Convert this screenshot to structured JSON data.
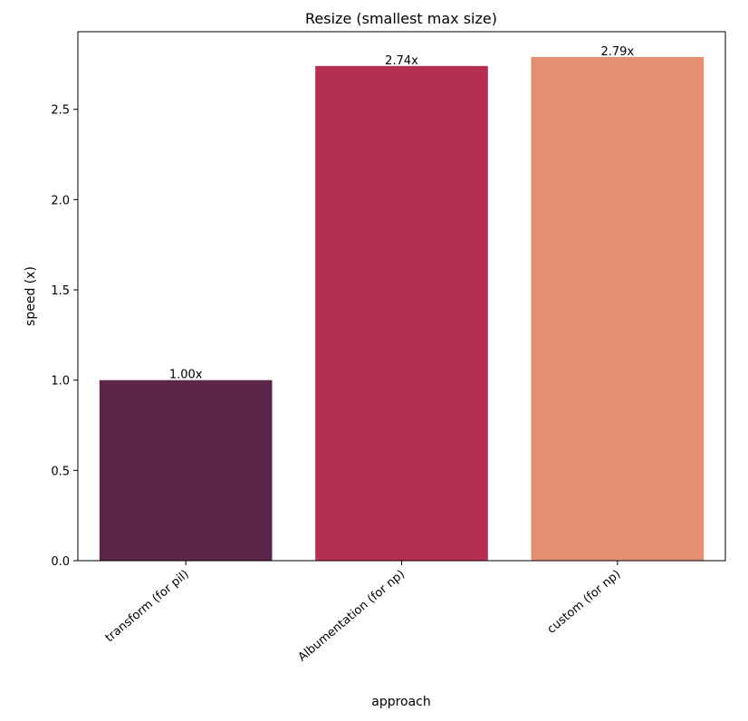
{
  "chart_data": {
    "type": "bar",
    "title": "Resize (smallest max size)",
    "xlabel": "approach",
    "ylabel": "speed (x)",
    "categories": [
      "transform (for pil)",
      "Albumentation (for np)",
      "custom (for np)"
    ],
    "values": [
      1.0,
      2.74,
      2.79
    ],
    "data_labels": [
      "1.00x",
      "2.74x",
      "2.79x"
    ],
    "colors": [
      "#5b2649",
      "#b52f52",
      "#e28f72"
    ],
    "ylim": [
      0,
      2.93
    ],
    "yticks": [
      0.0,
      0.5,
      1.0,
      1.5,
      2.0,
      2.5
    ],
    "ytick_labels": [
      "0.0",
      "0.5",
      "1.0",
      "1.5",
      "2.0",
      "2.5"
    ],
    "grid": false,
    "legend": "none"
  }
}
